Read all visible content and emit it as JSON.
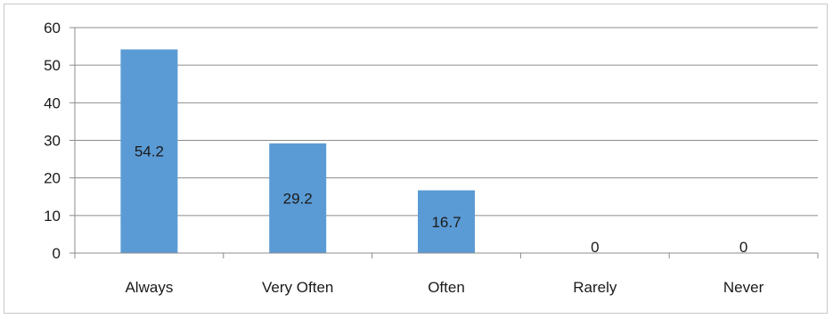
{
  "chart_data": {
    "type": "bar",
    "categories": [
      "Always",
      "Very Often",
      "Often",
      "Rarely",
      "Never"
    ],
    "values": [
      54.2,
      29.2,
      16.7,
      0,
      0
    ],
    "data_labels": [
      "54.2",
      "29.2",
      "16.7",
      "0",
      "0"
    ],
    "title": "",
    "xlabel": "",
    "ylabel": "",
    "ylim": [
      0,
      60
    ],
    "yticks": [
      0,
      10,
      20,
      30,
      40,
      50,
      60
    ],
    "grid": true,
    "legend": "none",
    "bar_color": "#5b9bd5",
    "grid_color": "#8c8c8c",
    "axis_color": "#8c8c8c"
  }
}
